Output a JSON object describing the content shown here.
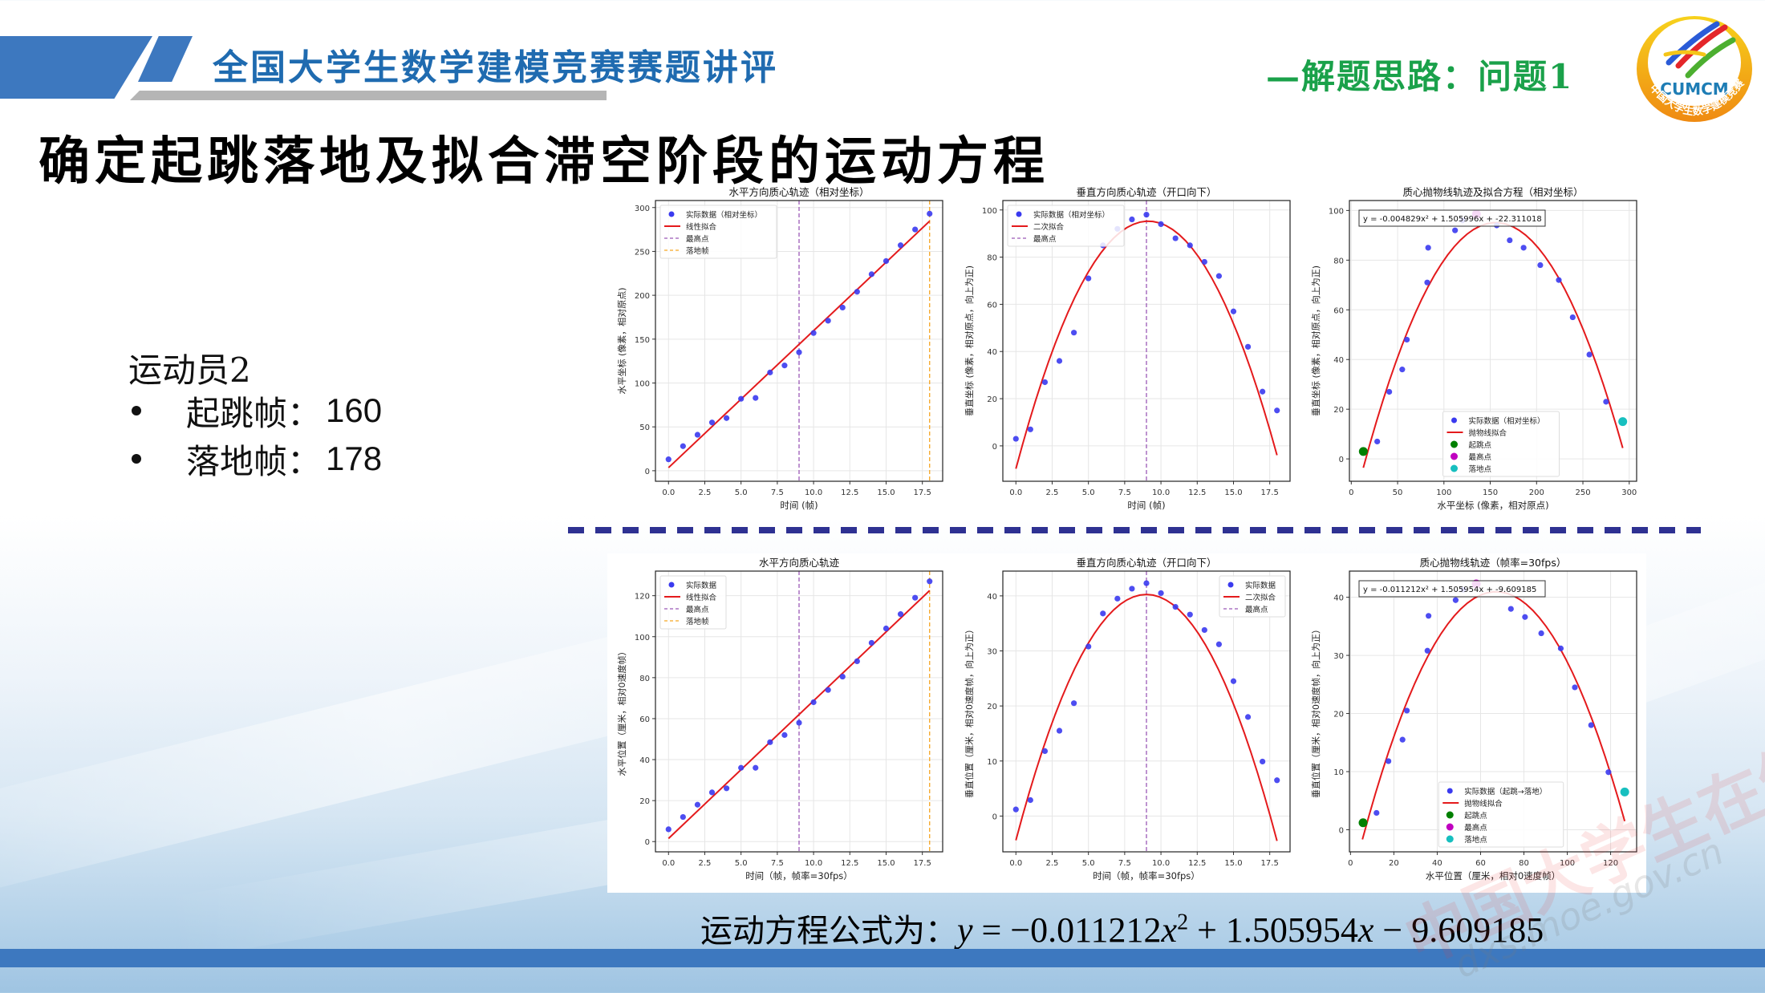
{
  "header": {
    "title": "全国大学生数学建模竞赛赛题讲评",
    "subtitle": "—解题思路：问题1",
    "logo": {
      "text": "CUMCM",
      "ring_text": "中国大学生数学建模竞赛",
      "icon": "cumcm-logo-icon"
    },
    "accent_blue": "#3d78bf",
    "accent_green": "#1aa14a"
  },
  "page_title": "确定起跳落地及拟合滞空阶段的运动方程",
  "athlete": {
    "name": "运动员2",
    "items": [
      {
        "label": "起跳帧：",
        "value": "160"
      },
      {
        "label": "落地帧：",
        "value": "178"
      }
    ]
  },
  "formula": {
    "prefix": "运动方程公式为：",
    "y": "y",
    "eq": " = −0.011212",
    "x1": "x",
    "sup": "2",
    "mid": " + 1.505954",
    "x2": "x",
    "tail": " − 9.609185"
  },
  "watermark": {
    "text": "中国大学生在线",
    "url": "dxs.moe.gov.cn"
  },
  "chart_data": [
    {
      "id": "c1",
      "type": "scatter",
      "title": "水平方向质心轨迹（相对坐标）",
      "xlabel": "时间 (帧)",
      "ylabel": "水平坐标 (像素，相对原点)",
      "xlim": [
        -0.9,
        18.9
      ],
      "ylim": [
        -12,
        308
      ],
      "xticks": [
        0,
        2.5,
        5,
        7.5,
        10,
        12.5,
        15,
        17.5
      ],
      "xtick_labels": [
        "0.0",
        "2.5",
        "5.0",
        "7.5",
        "10.0",
        "12.5",
        "15.0",
        "17.5"
      ],
      "yticks": [
        0,
        50,
        100,
        150,
        200,
        250,
        300
      ],
      "x": [
        0,
        1,
        2,
        3,
        4,
        5,
        6,
        7,
        8,
        9,
        10,
        11,
        12,
        13,
        14,
        15,
        16,
        17,
        18
      ],
      "y": [
        13,
        28,
        41,
        55,
        60,
        82,
        83,
        112,
        120,
        135,
        157,
        171,
        186,
        204,
        224,
        239,
        257,
        275,
        293
      ],
      "fit": {
        "kind": "linear",
        "x": [
          0,
          18
        ],
        "y": [
          3.5,
          284.5
        ]
      },
      "vlines": [
        {
          "x": 9,
          "color": "#9b59b6",
          "label": "最高点"
        },
        {
          "x": 18,
          "color": "#f5a623",
          "label": "落地帧"
        }
      ],
      "legend_position": "upper left",
      "legend": [
        "实际数据（相对坐标）",
        "线性拟合",
        "最高点",
        "落地帧"
      ]
    },
    {
      "id": "c2",
      "type": "scatter",
      "title": "垂直方向质心轨迹（开口向下）",
      "xlabel": "时间 (帧)",
      "ylabel": "垂直坐标 (像素，相对原点，向上为正)",
      "xlim": [
        -0.9,
        18.9
      ],
      "ylim": [
        -15,
        104
      ],
      "xticks": [
        0,
        2.5,
        5,
        7.5,
        10,
        12.5,
        15,
        17.5
      ],
      "xtick_labels": [
        "0.0",
        "2.5",
        "5.0",
        "7.5",
        "10.0",
        "12.5",
        "15.0",
        "17.5"
      ],
      "yticks": [
        0,
        20,
        40,
        60,
        80,
        100
      ],
      "x": [
        0,
        1,
        2,
        3,
        4,
        5,
        6,
        7,
        8,
        9,
        10,
        11,
        12,
        13,
        14,
        15,
        16,
        17,
        18
      ],
      "y": [
        3,
        7,
        27,
        36,
        48,
        71,
        85,
        92,
        96,
        98,
        94,
        88,
        85,
        78,
        72,
        57,
        42,
        23,
        15
      ],
      "fit": {
        "kind": "quadratic",
        "a": -1.26,
        "b": 23.0,
        "c": -9.7,
        "x0": 0,
        "x1": 18
      },
      "vlines": [
        {
          "x": 9,
          "color": "#9b59b6",
          "label": "最高点"
        }
      ],
      "legend_position": "upper left",
      "legend": [
        "实际数据（相对坐标）",
        "二次拟合",
        "最高点"
      ]
    },
    {
      "id": "c3",
      "type": "scatter",
      "title": "质心抛物线轨迹及拟合方程（相对坐标）",
      "xlabel": "水平坐标 (像素，相对原点)",
      "ylabel": "垂直坐标 (像素，相对原点，向上为正)",
      "xlim": [
        -2,
        308
      ],
      "ylim": [
        -9,
        104
      ],
      "xticks": [
        0,
        50,
        100,
        150,
        200,
        250,
        300
      ],
      "xtick_labels": [
        "0",
        "50",
        "100",
        "150",
        "200",
        "250",
        "300"
      ],
      "yticks": [
        0,
        20,
        40,
        60,
        80,
        100
      ],
      "x": [
        28,
        41,
        55,
        60,
        82,
        83,
        112,
        120,
        157,
        171,
        186,
        204,
        224,
        239,
        257,
        275
      ],
      "y": [
        7,
        27,
        36,
        48,
        71,
        85,
        92,
        96,
        94,
        88,
        85,
        78,
        72,
        57,
        42,
        23
      ],
      "fit": {
        "kind": "quadratic",
        "a": -0.004829,
        "b": 1.505996,
        "c": -22.311018,
        "x0": 13,
        "x1": 293
      },
      "markers": [
        {
          "x": 13,
          "y": 3,
          "color": "#008000",
          "label": "起跳点"
        },
        {
          "x": 135,
          "y": 98.5,
          "color": "#c000c0",
          "label": "最高点"
        },
        {
          "x": 293,
          "y": 15,
          "color": "#17bfbf",
          "label": "落地点"
        }
      ],
      "annotation": "y = -0.004829x² + 1.505996x + -22.311018",
      "legend_position": "lower center",
      "legend": [
        "实际数据（相对坐标）",
        "抛物线拟合",
        "起跳点",
        "最高点",
        "落地点"
      ]
    },
    {
      "id": "c4",
      "type": "scatter",
      "title": "水平方向质心轨迹",
      "xlabel": "时间（帧，帧率=30fps）",
      "ylabel": "水平位置（厘米，相对0速度帧）",
      "xlim": [
        -0.9,
        18.9
      ],
      "ylim": [
        -5,
        132
      ],
      "xticks": [
        0,
        2.5,
        5,
        7.5,
        10,
        12.5,
        15,
        17.5
      ],
      "xtick_labels": [
        "0.0",
        "2.5",
        "5.0",
        "7.5",
        "10.0",
        "12.5",
        "15.0",
        "17.5"
      ],
      "yticks": [
        0,
        20,
        40,
        60,
        80,
        100,
        120
      ],
      "x": [
        0,
        1,
        2,
        3,
        4,
        5,
        6,
        7,
        8,
        9,
        10,
        11,
        12,
        13,
        14,
        15,
        16,
        17,
        18
      ],
      "y": [
        6,
        12,
        18,
        24,
        26,
        36,
        36,
        48.5,
        52,
        58,
        68,
        74,
        80.5,
        88,
        97,
        104,
        111,
        119,
        127
      ],
      "fit": {
        "kind": "linear",
        "x": [
          0,
          18
        ],
        "y": [
          1.5,
          122.5
        ]
      },
      "vlines": [
        {
          "x": 9,
          "color": "#9b59b6",
          "label": "最高点"
        },
        {
          "x": 18,
          "color": "#f5a623",
          "label": "落地帧"
        }
      ],
      "legend_position": "upper left",
      "legend": [
        "实际数据",
        "线性拟合",
        "最高点",
        "落地帧"
      ]
    },
    {
      "id": "c5",
      "type": "scatter",
      "title": "垂直方向质心轨迹（开口向下）",
      "xlabel": "时间（帧，帧率=30fps）",
      "ylabel": "垂直位置（厘米，相对0速度帧，向上为正）",
      "xlim": [
        -0.9,
        18.9
      ],
      "ylim": [
        -6.5,
        44.5
      ],
      "xticks": [
        0,
        2.5,
        5,
        7.5,
        10,
        12.5,
        15,
        17.5
      ],
      "xtick_labels": [
        "0.0",
        "2.5",
        "5.0",
        "7.5",
        "10.0",
        "12.5",
        "15.0",
        "17.5"
      ],
      "yticks": [
        0,
        10,
        20,
        30,
        40
      ],
      "x": [
        0,
        1,
        2,
        3,
        4,
        5,
        6,
        7,
        8,
        9,
        10,
        11,
        12,
        13,
        14,
        15,
        16,
        17,
        18
      ],
      "y": [
        1.2,
        2.9,
        11.8,
        15.5,
        20.5,
        30.8,
        36.8,
        39.5,
        41.3,
        42.3,
        40.5,
        38.0,
        36.6,
        33.8,
        31.2,
        24.5,
        18.0,
        9.9,
        6.5
      ],
      "fit": {
        "kind": "quadratic",
        "a": -0.552,
        "b": 9.93,
        "c": -4.4,
        "x0": 0,
        "x1": 18
      },
      "vlines": [
        {
          "x": 9,
          "color": "#9b59b6",
          "label": "最高点"
        }
      ],
      "legend_position": "upper right",
      "legend": [
        "实际数据",
        "二次拟合",
        "最高点"
      ]
    },
    {
      "id": "c6",
      "type": "scatter",
      "title": "质心抛物线轨迹（帧率=30fps）",
      "xlabel": "水平位置（厘米，相对0速度帧）",
      "ylabel": "垂直位置（厘米，相对0速度帧，向上为正）",
      "xlim": [
        -0.5,
        132
      ],
      "ylim": [
        -3.8,
        44.5
      ],
      "xticks": [
        0,
        20,
        40,
        60,
        80,
        100,
        120
      ],
      "xtick_labels": [
        "0",
        "20",
        "40",
        "60",
        "80",
        "100",
        "120"
      ],
      "yticks": [
        0,
        10,
        20,
        30,
        40
      ],
      "x": [
        12,
        17.5,
        24,
        26,
        35.5,
        36,
        48.5,
        52,
        74,
        80.5,
        88,
        97,
        103.5,
        111,
        119
      ],
      "y": [
        2.9,
        11.8,
        15.5,
        20.5,
        30.8,
        36.8,
        39.5,
        41.3,
        38.0,
        36.6,
        33.8,
        31.2,
        24.5,
        18.0,
        9.9
      ],
      "fit": {
        "kind": "quadratic",
        "a": -0.011212,
        "b": 1.505954,
        "c": -9.609185,
        "x0": 5.5,
        "x1": 126.5
      },
      "markers": [
        {
          "x": 5.8,
          "y": 1.2,
          "color": "#008000",
          "label": "起跳点"
        },
        {
          "x": 58,
          "y": 42.3,
          "color": "#c000c0",
          "label": "最高点"
        },
        {
          "x": 126.5,
          "y": 6.5,
          "color": "#17bfbf",
          "label": "落地点"
        }
      ],
      "annotation": "y = -0.011212x² + 1.505954x + -9.609185",
      "legend_position": "lower center",
      "legend": [
        "实际数据（起跳→落地）",
        "抛物线拟合",
        "起跳点",
        "最高点",
        "落地点"
      ]
    }
  ]
}
